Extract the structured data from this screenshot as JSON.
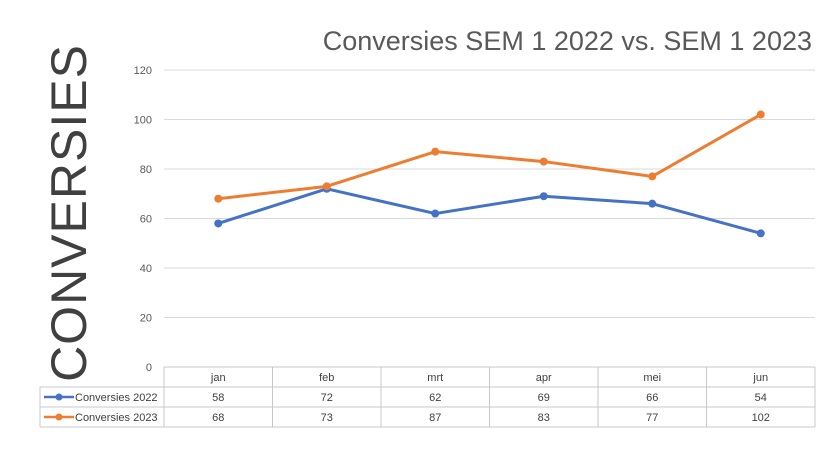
{
  "chart_data": {
    "type": "line",
    "title": "Conversies SEM 1 2022 vs. SEM 1 2023",
    "ylabel": "CONVERSIES",
    "categories": [
      "jan",
      "feb",
      "mrt",
      "apr",
      "mei",
      "jun"
    ],
    "y_ticks": [
      0,
      20,
      40,
      60,
      80,
      100,
      120
    ],
    "ylim": [
      0,
      120
    ],
    "grid": true,
    "legend": "data-table",
    "series": [
      {
        "name": "Conversies 2022",
        "color": "#4472C4",
        "values": [
          58,
          72,
          62,
          69,
          66,
          54
        ]
      },
      {
        "name": "Conversies 2023",
        "color": "#ED7D31",
        "values": [
          68,
          73,
          87,
          83,
          77,
          102
        ]
      }
    ]
  }
}
